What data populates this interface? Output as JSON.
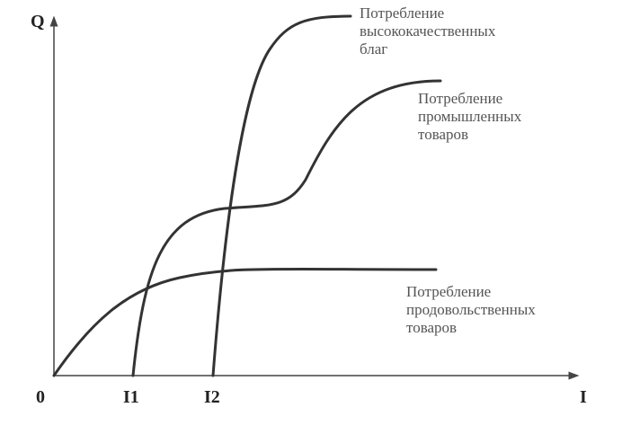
{
  "axes": {
    "y_label": "Q",
    "x_label": "I",
    "origin": "0",
    "x_marks": [
      "I1",
      "I2"
    ]
  },
  "curves": [
    {
      "label": [
        "Потребление",
        "высококачественных",
        "благ"
      ]
    },
    {
      "label": [
        "Потребление",
        "промышленных",
        "товаров"
      ]
    },
    {
      "label": [
        "Потребление",
        "продовольственных",
        "товаров"
      ]
    }
  ]
}
